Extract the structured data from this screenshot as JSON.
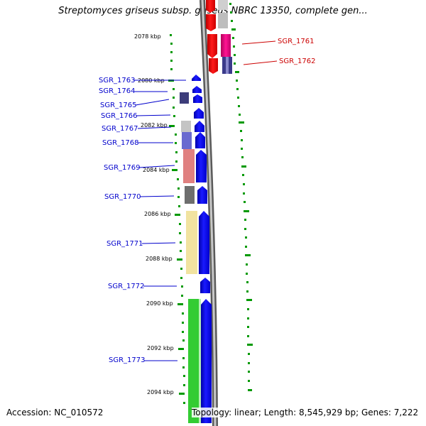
{
  "title": "Streptomyces griseus subsp. griseus NBRC 13350, complete gen...",
  "accession": "Accession: NC_010572",
  "summary": "Topology: linear; Length: 8,545,929 bp; Genes: 7,222",
  "colors": {
    "backbone": "#8a8a8a",
    "forward_gene": "#0000ff",
    "reverse_gene": "#ff0000",
    "reverse_gene_alt": "#e0007a",
    "tick": "#009900",
    "label_left": "#0000cc",
    "label_right": "#cc0000"
  },
  "scale_ticks": [
    "2078 kbp",
    "2080 kbp",
    "2082 kbp",
    "2084 kbp",
    "2086 kbp",
    "2088 kbp",
    "2090 kbp",
    "2092 kbp",
    "2094 kbp"
  ],
  "left_genes": [
    "SGR_1763",
    "SGR_1764",
    "SGR_1765",
    "SGR_1766",
    "SGR_1767",
    "SGR_1768",
    "SGR_1769",
    "SGR_1770",
    "SGR_1771",
    "SGR_1772",
    "SGR_1773"
  ],
  "right_genes": [
    "SGR_1761",
    "SGR_1762"
  ]
}
